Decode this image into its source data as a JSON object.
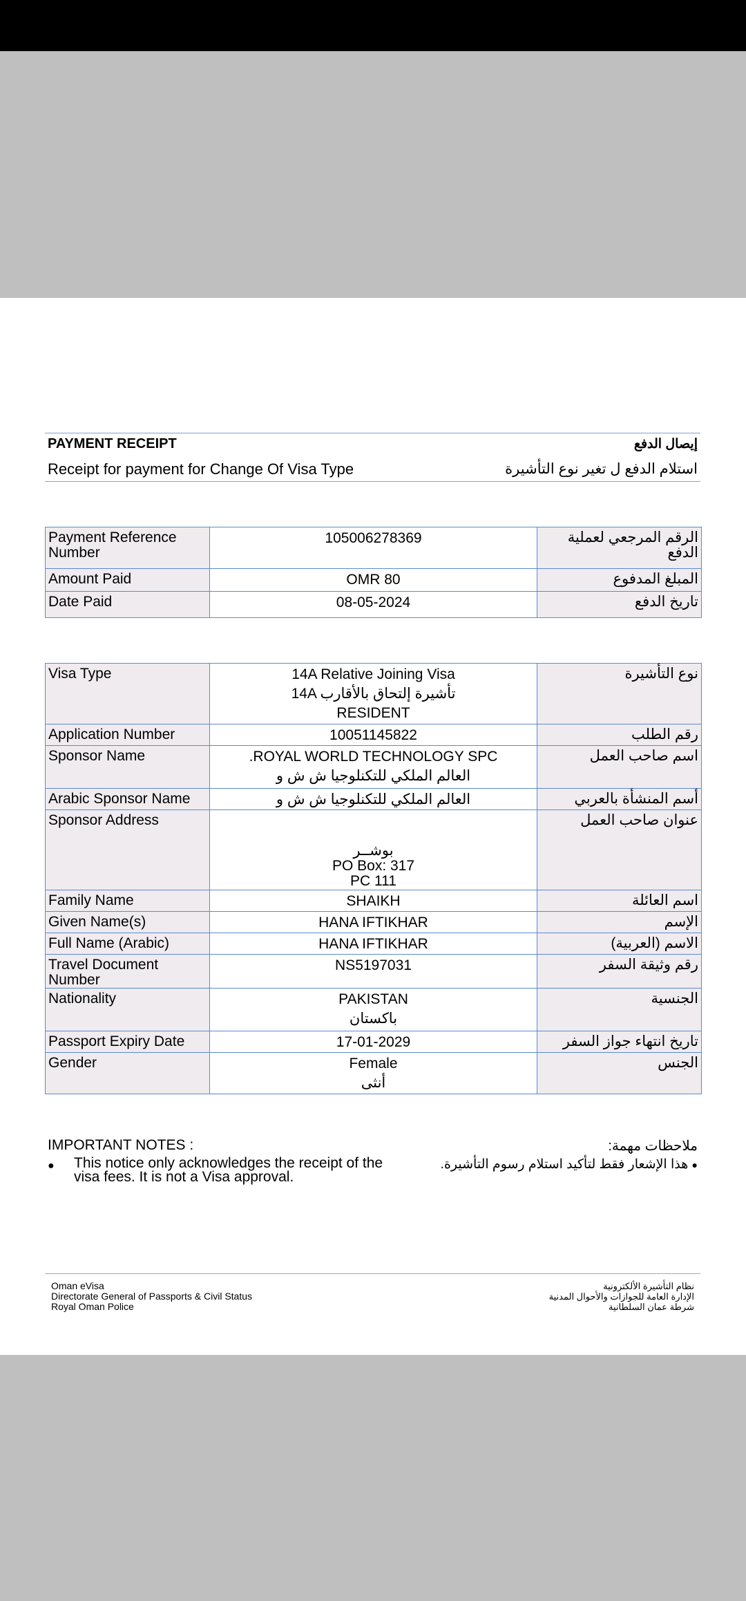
{
  "header": {
    "title": "PAYMENT RECEIPT",
    "title_ar": "إيصال الدفع",
    "subtitle": "Receipt for payment for Change Of Visa Type",
    "subtitle_ar": "استلام الدفع ل تغير نوع التأشيرة"
  },
  "payment_table": [
    {
      "label": "Payment Reference Number",
      "value": [
        "105006278369"
      ],
      "label_ar": "الرقم المرجعي لعملية الدفع"
    },
    {
      "label": "Amount Paid",
      "value": [
        "OMR 80"
      ],
      "label_ar": "المبلغ المدفوع"
    },
    {
      "label": "Date Paid",
      "value": [
        "08-05-2024"
      ],
      "label_ar": "تاريخ الدفع"
    }
  ],
  "details_table": [
    {
      "label": "Visa Type",
      "value": [
        "14A Relative Joining  Visa",
        "14A تأشيرة إلتحاق بالأقارب",
        "RESIDENT"
      ],
      "label_ar": "نوع التأشيرة"
    },
    {
      "label": "Application Number",
      "value": [
        "10051145822"
      ],
      "label_ar": "رقم الطلب"
    },
    {
      "label": "Sponsor Name",
      "value": [
        ".ROYAL WORLD TECHNOLOGY SPC",
        "العالم الملكي للتكنلوجيا ش ش و"
      ],
      "label_ar": "اسم صاحب العمل"
    },
    {
      "label": "Arabic Sponsor Name",
      "value": [
        "العالم الملكي للتكنلوجيا ش ش و"
      ],
      "label_ar": "أسم المنشأة بالعربي"
    },
    {
      "label": "Sponsor Address",
      "value": [
        "بوشــر",
        "PO Box: 317",
        "PC 111"
      ],
      "label_ar": "عنوان صاحب العمل"
    },
    {
      "label": "Family Name",
      "value": [
        "SHAIKH"
      ],
      "label_ar": "اسم العائلة"
    },
    {
      "label": "Given Name(s)",
      "value": [
        "HANA IFTIKHAR"
      ],
      "label_ar": "الإسم"
    },
    {
      "label": "Full Name (Arabic)",
      "value": [
        "HANA IFTIKHAR"
      ],
      "label_ar": "الاسم (العربية)"
    },
    {
      "label": "Travel Document Number",
      "value": [
        "NS5197031"
      ],
      "label_ar": "رقم وثيقة السفر"
    },
    {
      "label": "Nationality",
      "value": [
        "PAKISTAN",
        "باكستان"
      ],
      "label_ar": "الجنسية"
    },
    {
      "label": "Passport Expiry Date",
      "value": [
        "17-01-2029"
      ],
      "label_ar": "تاريخ انتهاء جواز السفر"
    },
    {
      "label": "Gender",
      "value": [
        "Female",
        "أنثى"
      ],
      "label_ar": "الجنس"
    }
  ],
  "notes": {
    "title": "IMPORTANT NOTES :",
    "title_ar": "ملاحظات مهمة:",
    "bullet_icon": "bullet-dot",
    "item": "This notice only acknowledges the receipt of the visa fees. It is not a Visa approval.",
    "item_ar": "هذا الإشعار فقط لتأكيد استلام رسوم التأشيرة."
  },
  "footer": {
    "lines": [
      "Oman eVisa",
      "Directorate General of Passports & Civil Status",
      "Royal Oman Police"
    ],
    "lines_ar": [
      "نظام التأشيرة الألكترونية",
      "الإدارة العامة للجوازات والأحوال المدنية",
      "شرطة عمان السلطانية"
    ]
  },
  "colors": {
    "border": "#5b8bd0",
    "label_bg": "#efebef",
    "viewer_bg": "#bfbfbf"
  }
}
